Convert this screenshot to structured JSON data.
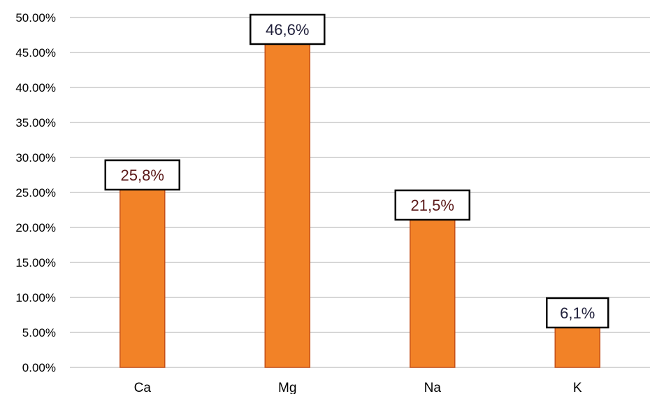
{
  "chart_data": {
    "type": "bar",
    "categories": [
      "Ca",
      "Mg",
      "Na",
      "K"
    ],
    "values": [
      25.8,
      46.6,
      21.5,
      6.1
    ],
    "data_labels": [
      "25,8%",
      "46,6%",
      "21,5%",
      "6,1%"
    ],
    "yticks": [
      "0.00%",
      "5.00%",
      "10.00%",
      "15.00%",
      "20.00%",
      "25.00%",
      "30.00%",
      "35.00%",
      "40.00%",
      "45.00%",
      "50.00%"
    ],
    "ylim": [
      0,
      50
    ],
    "grid": true,
    "legend": "none",
    "colors": {
      "bar_fill": "#F28227",
      "bar_stroke": "#C4501A",
      "grid": "#BFBFBF",
      "label_text": [
        "#5C1A1A",
        "#1F1F3A",
        "#5C1A1A",
        "#1F1F3A"
      ],
      "label_box_border": "#000000"
    }
  }
}
